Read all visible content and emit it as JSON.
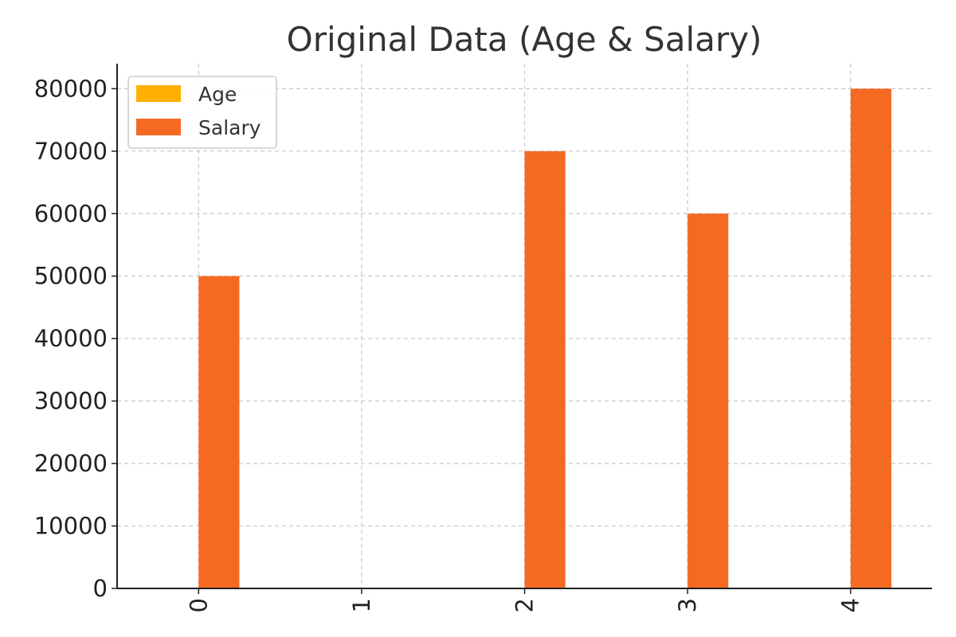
{
  "chart_data": {
    "type": "bar",
    "title": "Original Data (Age & Salary)",
    "xlabel": "",
    "ylabel": "",
    "categories": [
      "0",
      "1",
      "2",
      "3",
      "4"
    ],
    "series": [
      {
        "name": "Age",
        "color": "#FFB000",
        "values": [
          null,
          null,
          null,
          null,
          null
        ]
      },
      {
        "name": "Salary",
        "color": "#F46A22",
        "values": [
          50000,
          null,
          70000,
          60000,
          80000
        ]
      }
    ],
    "ylim": [
      0,
      84000
    ],
    "yticks": [
      "0",
      "10000",
      "20000",
      "30000",
      "40000",
      "50000",
      "60000",
      "70000",
      "80000"
    ],
    "grid": true,
    "legend_position": "top-left",
    "x_tick_rotation": "vertical"
  }
}
